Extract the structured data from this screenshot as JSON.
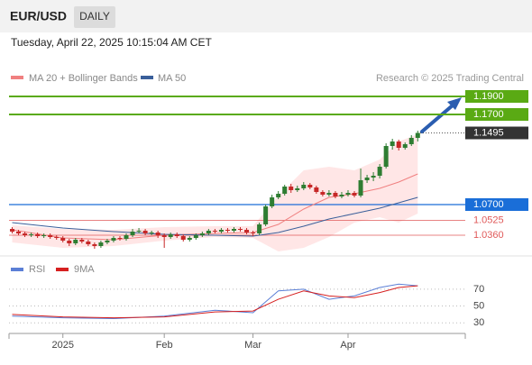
{
  "header": {
    "symbol": "EUR/USD",
    "period": "DAILY",
    "datetime": "Tuesday, April 22, 2025 10:15:04 AM CET"
  },
  "chart_data": [
    {
      "type": "candlestick",
      "legend": [
        {
          "name": "MA 20 + Bollinger Bands",
          "color": "#f08080"
        },
        {
          "name": "MA 50",
          "color": "#3a5f9a"
        }
      ],
      "credit": "Research © 2025 Trading Central",
      "xlim": [
        -0.5,
        71.5
      ],
      "ylim": [
        1.017,
        1.207
      ],
      "xlabels": [
        {
          "value": 8,
          "label": "2025"
        },
        {
          "value": 24,
          "label": "Feb"
        },
        {
          "value": 38,
          "label": "Mar"
        },
        {
          "value": 53,
          "label": "Apr"
        }
      ],
      "up_color": "#2e7d32",
      "down_color": "#c62828",
      "candles": [
        [
          1.043,
          1.045,
          1.038,
          1.04
        ],
        [
          1.04,
          1.042,
          1.036,
          1.038
        ],
        [
          1.038,
          1.04,
          1.034,
          1.036
        ],
        [
          1.036,
          1.039,
          1.034,
          1.037
        ],
        [
          1.037,
          1.039,
          1.033,
          1.035
        ],
        [
          1.035,
          1.038,
          1.033,
          1.036
        ],
        [
          1.036,
          1.038,
          1.032,
          1.034
        ],
        [
          1.034,
          1.036,
          1.031,
          1.033
        ],
        [
          1.033,
          1.035,
          1.028,
          1.03
        ],
        [
          1.03,
          1.032,
          1.024,
          1.027
        ],
        [
          1.027,
          1.033,
          1.025,
          1.031
        ],
        [
          1.031,
          1.033,
          1.027,
          1.029
        ],
        [
          1.029,
          1.031,
          1.024,
          1.026
        ],
        [
          1.026,
          1.028,
          1.021,
          1.024
        ],
        [
          1.024,
          1.03,
          1.022,
          1.028
        ],
        [
          1.028,
          1.032,
          1.026,
          1.03
        ],
        [
          1.03,
          1.035,
          1.028,
          1.033
        ],
        [
          1.033,
          1.035,
          1.03,
          1.032
        ],
        [
          1.032,
          1.038,
          1.03,
          1.036
        ],
        [
          1.036,
          1.043,
          1.034,
          1.04
        ],
        [
          1.04,
          1.044,
          1.038,
          1.041
        ],
        [
          1.041,
          1.043,
          1.036,
          1.038
        ],
        [
          1.038,
          1.041,
          1.036,
          1.039
        ],
        [
          1.039,
          1.041,
          1.033,
          1.036
        ],
        [
          1.036,
          1.038,
          1.022,
          1.034
        ],
        [
          1.034,
          1.039,
          1.032,
          1.037
        ],
        [
          1.037,
          1.039,
          1.033,
          1.035
        ],
        [
          1.035,
          1.037,
          1.029,
          1.031
        ],
        [
          1.031,
          1.035,
          1.029,
          1.033
        ],
        [
          1.033,
          1.038,
          1.031,
          1.036
        ],
        [
          1.036,
          1.04,
          1.034,
          1.038
        ],
        [
          1.038,
          1.043,
          1.036,
          1.041
        ],
        [
          1.041,
          1.043,
          1.038,
          1.04
        ],
        [
          1.04,
          1.044,
          1.038,
          1.042
        ],
        [
          1.042,
          1.044,
          1.039,
          1.041
        ],
        [
          1.041,
          1.045,
          1.039,
          1.043
        ],
        [
          1.043,
          1.045,
          1.04,
          1.042
        ],
        [
          1.042,
          1.044,
          1.037,
          1.039
        ],
        [
          1.039,
          1.041,
          1.035,
          1.038
        ],
        [
          1.038,
          1.05,
          1.036,
          1.048
        ],
        [
          1.048,
          1.07,
          1.046,
          1.068
        ],
        [
          1.068,
          1.081,
          1.066,
          1.078
        ],
        [
          1.078,
          1.085,
          1.076,
          1.082
        ],
        [
          1.082,
          1.092,
          1.08,
          1.09
        ],
        [
          1.09,
          1.093,
          1.083,
          1.086
        ],
        [
          1.086,
          1.091,
          1.084,
          1.088
        ],
        [
          1.088,
          1.095,
          1.086,
          1.092
        ],
        [
          1.092,
          1.094,
          1.087,
          1.089
        ],
        [
          1.089,
          1.091,
          1.082,
          1.084
        ],
        [
          1.084,
          1.086,
          1.079,
          1.081
        ],
        [
          1.081,
          1.086,
          1.079,
          1.083
        ],
        [
          1.083,
          1.085,
          1.077,
          1.079
        ],
        [
          1.079,
          1.084,
          1.077,
          1.081
        ],
        [
          1.081,
          1.086,
          1.079,
          1.083
        ],
        [
          1.083,
          1.085,
          1.078,
          1.08
        ],
        [
          1.08,
          1.11,
          1.078,
          1.097
        ],
        [
          1.097,
          1.103,
          1.094,
          1.1
        ],
        [
          1.1,
          1.106,
          1.096,
          1.102
        ],
        [
          1.102,
          1.115,
          1.099,
          1.112
        ],
        [
          1.112,
          1.138,
          1.11,
          1.135
        ],
        [
          1.135,
          1.143,
          1.131,
          1.14
        ],
        [
          1.14,
          1.142,
          1.13,
          1.133
        ],
        [
          1.133,
          1.139,
          1.131,
          1.137
        ],
        [
          1.137,
          1.147,
          1.135,
          1.144
        ],
        [
          1.144,
          1.152,
          1.14,
          1.1495
        ]
      ],
      "x": [
        0,
        8,
        16,
        24,
        32,
        38,
        42,
        46,
        50,
        54,
        58,
        61,
        64
      ],
      "band_upper": [
        1.047,
        1.043,
        1.042,
        1.045,
        1.046,
        1.046,
        1.08,
        1.108,
        1.112,
        1.108,
        1.12,
        1.14,
        1.148
      ],
      "band_lower": [
        1.028,
        1.022,
        1.024,
        1.03,
        1.034,
        1.033,
        1.018,
        1.022,
        1.034,
        1.05,
        1.056,
        1.05,
        1.06
      ],
      "series": [
        {
          "name": "MA 20",
          "color": "#f08080",
          "values": [
            1.042,
            1.033,
            1.031,
            1.036,
            1.038,
            1.039,
            1.048,
            1.065,
            1.078,
            1.082,
            1.088,
            1.095,
            1.104
          ]
        },
        {
          "name": "MA 50",
          "color": "#3a5f9a",
          "values": [
            1.05,
            1.044,
            1.04,
            1.037,
            1.036,
            1.035,
            1.039,
            1.046,
            1.054,
            1.06,
            1.066,
            1.072,
            1.078
          ]
        }
      ],
      "levels": [
        {
          "value": 1.19,
          "label": "1.1900",
          "color": "#5aaa14",
          "style": "box"
        },
        {
          "value": 1.17,
          "label": "1.1700",
          "color": "#5aaa14",
          "style": "box"
        },
        {
          "value": 1.1495,
          "label": "1.1495",
          "color": "#333333",
          "style": "last"
        },
        {
          "value": 1.07,
          "label": "1.0700",
          "color": "#1a6ed8",
          "style": "box"
        },
        {
          "value": 1.0525,
          "label": "1.0525",
          "color": "#e05a5a",
          "style": "text"
        },
        {
          "value": 1.036,
          "label": "1.0360",
          "color": "#e05a5a",
          "style": "text"
        }
      ]
    },
    {
      "type": "line",
      "ylim": [
        19.5,
        87
      ],
      "yticks": [
        70,
        50,
        30
      ],
      "x": [
        0,
        8,
        16,
        24,
        32,
        38,
        42,
        46,
        50,
        54,
        58,
        61,
        64
      ],
      "series": [
        {
          "name": "RSI",
          "color": "#5b7fd6",
          "values": [
            38,
            36,
            35,
            38,
            45,
            42,
            68,
            70,
            58,
            62,
            72,
            76,
            74
          ]
        },
        {
          "name": "9MA",
          "color": "#d62020",
          "values": [
            40,
            37,
            36,
            37,
            43,
            44,
            58,
            68,
            62,
            60,
            66,
            72,
            74
          ]
        }
      ]
    }
  ]
}
